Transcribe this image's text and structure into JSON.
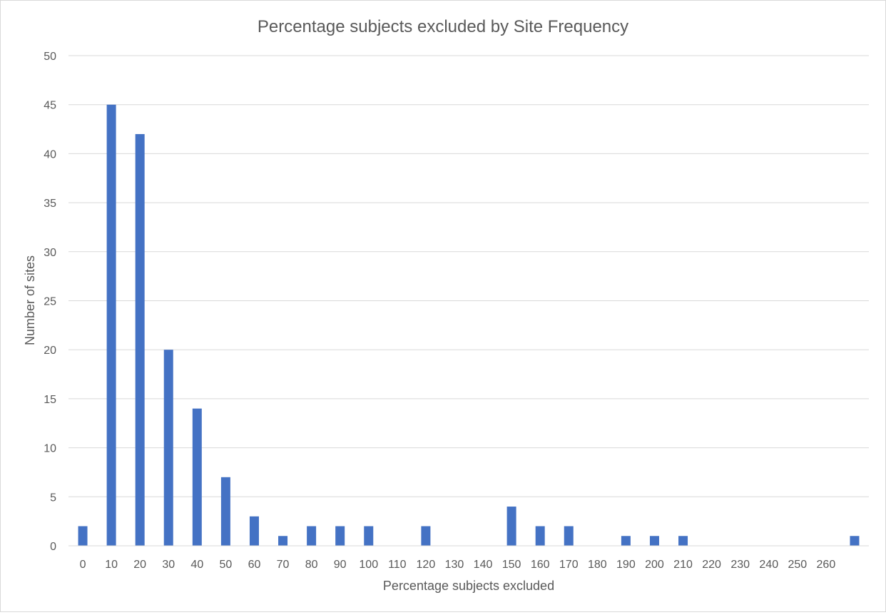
{
  "chart_data": {
    "type": "bar",
    "title": "Percentage subjects excluded by Site Frequency",
    "xlabel": "Percentage subjects excluded",
    "ylabel": "Number of sites",
    "ylim": [
      0,
      50
    ],
    "yticks": [
      "0",
      "5",
      "10",
      "15",
      "20",
      "25",
      "30",
      "35",
      "40",
      "45",
      "50"
    ],
    "grid": true,
    "legend": "none",
    "bar_color": "#4472c4",
    "categories": [
      "0",
      "10",
      "20",
      "30",
      "40",
      "50",
      "60",
      "70",
      "80",
      "90",
      "100",
      "110",
      "120",
      "130",
      "140",
      "150",
      "160",
      "170",
      "180",
      "190",
      "200",
      "210",
      "220",
      "230",
      "240",
      "250",
      "260",
      ""
    ],
    "values": [
      2,
      45,
      42,
      20,
      14,
      7,
      3,
      1,
      2,
      2,
      2,
      0,
      2,
      0,
      0,
      4,
      2,
      2,
      0,
      1,
      1,
      1,
      0,
      0,
      0,
      0,
      0,
      1
    ]
  }
}
